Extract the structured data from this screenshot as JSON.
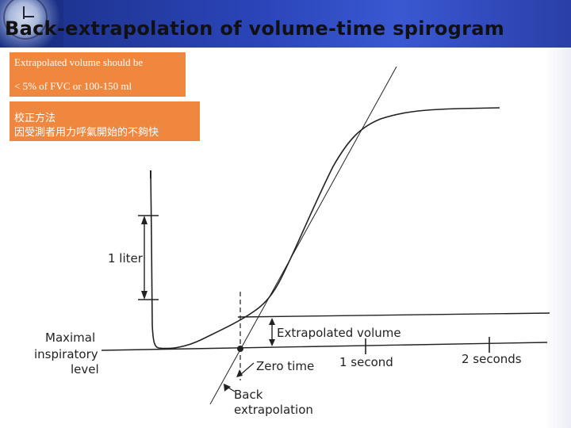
{
  "title": "Back-extrapolation of volume-time spirogram",
  "note_box": {
    "line1": "Extrapolated  volume should be",
    "line2": "< 5% of FVC or 100-150 ml"
  },
  "note_box_chinese": {
    "line1": "校正方法",
    "line2": "因受測者用力呼氣開始的不夠快"
  },
  "diagram": {
    "label_1_liter": "1 liter",
    "label_maximal": "Maximal",
    "label_inspiratory": "inspiratory",
    "label_level": "level",
    "label_extrapolated_volume": "Extrapolated volume",
    "label_zero_time": "Zero time",
    "label_1_second": "1 second",
    "label_2_seconds": "2 seconds",
    "label_back": "Back",
    "label_extrapolation": "extrapolation"
  },
  "colors": {
    "header": "#2a45b8",
    "note_box": "#f0873e",
    "curve": "#222222"
  }
}
